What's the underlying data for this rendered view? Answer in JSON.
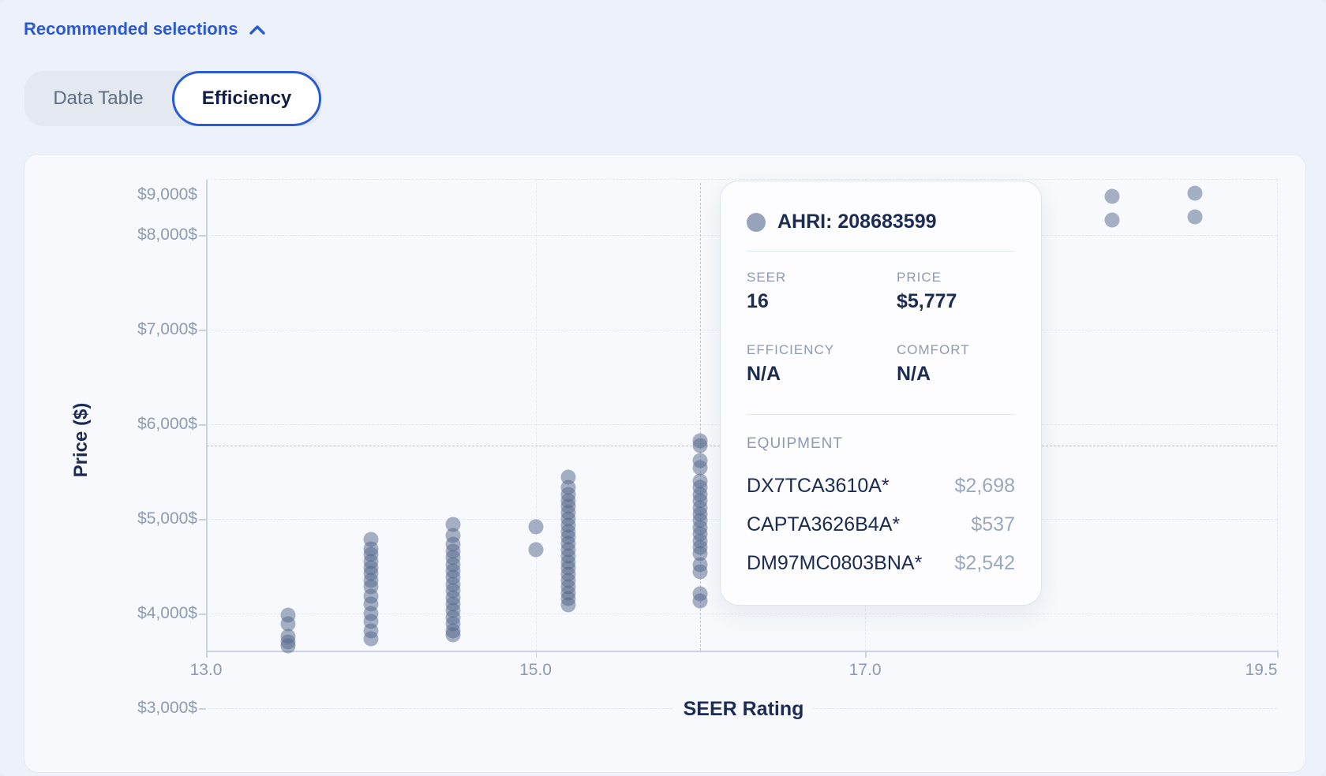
{
  "header": {
    "recommended_selections_label": "Recommended selections"
  },
  "tabs": {
    "data_table_label": "Data Table",
    "efficiency_label": "Efficiency"
  },
  "colors": {
    "accent_blue": "#2a5ad4",
    "dot_fill": "#52668a",
    "navy": "#1b2b52",
    "muted_tick": "#8e9bb1"
  },
  "tooltip": {
    "title": "AHRI: 208683599",
    "fields": [
      {
        "label": "SEER",
        "value": "16"
      },
      {
        "label": "PRICE",
        "value": "$5,777"
      },
      {
        "label": "EFFICIENCY",
        "value": "N/A"
      },
      {
        "label": "COMFORT",
        "value": "N/A"
      }
    ],
    "equipment_label": "EQUIPMENT",
    "equipment": [
      {
        "name": "DX7TCA3610A*",
        "price": "$2,698"
      },
      {
        "name": "CAPTA3626B4A*",
        "price": "$537"
      },
      {
        "name": "DM97MC0803BNA*",
        "price": "$2,542"
      }
    ]
  },
  "chart_data": {
    "type": "scatter",
    "xlabel": "SEER Rating",
    "ylabel": "Price ($)",
    "xlim": [
      13.0,
      19.5
    ],
    "x_ticks": [
      {
        "label": "13.0",
        "value": 13.0
      },
      {
        "label": "15.0",
        "value": 15.0
      },
      {
        "label": "17.0",
        "value": 17.0
      },
      {
        "label": "19.5",
        "value": 19.5
      }
    ],
    "y_ticks": [
      {
        "label": "$9,000$",
        "value": 9000
      },
      {
        "label": "$8,000$",
        "value": 8000
      },
      {
        "label": "$7,000$",
        "value": 7000
      },
      {
        "label": "$6,000$",
        "value": 6000
      },
      {
        "label": "$5,000$",
        "value": 5000
      },
      {
        "label": "$4,000$",
        "value": 4000
      },
      {
        "label": "$3,000$",
        "value": 3000
      }
    ],
    "x_gridlines": [
      15.0,
      17.0
    ],
    "grid": "dashed",
    "series": [
      {
        "seer": 13.5,
        "prices": [
          3980,
          3895,
          3760,
          3700,
          3655
        ]
      },
      {
        "seer": 14.0,
        "prices": [
          4785,
          4680,
          4625,
          4550,
          4480,
          4425,
          4350,
          4285,
          4180,
          4100,
          4000,
          3915,
          3820,
          3735
        ]
      },
      {
        "seer": 14.5,
        "prices": [
          4945,
          4825,
          4730,
          4660,
          4590,
          4520,
          4450,
          4380,
          4310,
          4240,
          4170,
          4100,
          4030,
          3960,
          3890,
          3820,
          3775
        ]
      },
      {
        "seer": 15.0,
        "prices": [
          4920,
          4675
        ]
      },
      {
        "seer": 15.2,
        "prices": [
          5440,
          5330,
          5260,
          5195,
          5130,
          5065,
          5000,
          4935,
          4870,
          4805,
          4740,
          4675,
          4610,
          4545,
          4480,
          4415,
          4350,
          4285,
          4220,
          4155,
          4090
        ]
      },
      {
        "seer": 16.0,
        "prices": [
          5825,
          5777,
          5615,
          5540,
          5400,
          5330,
          5260,
          5190,
          5120,
          5050,
          4980,
          4910,
          4840,
          4770,
          4700,
          4630,
          4520,
          4440,
          4210,
          4130
        ]
      },
      {
        "seer": 18.5,
        "prices": [
          8410,
          8155
        ]
      },
      {
        "seer": 19.0,
        "prices": [
          8440,
          8190
        ]
      }
    ],
    "selected_point": {
      "ahri": "208683599",
      "seer": 16,
      "price": 5777
    },
    "crosshair": {
      "x": 16,
      "y": 5777
    }
  }
}
